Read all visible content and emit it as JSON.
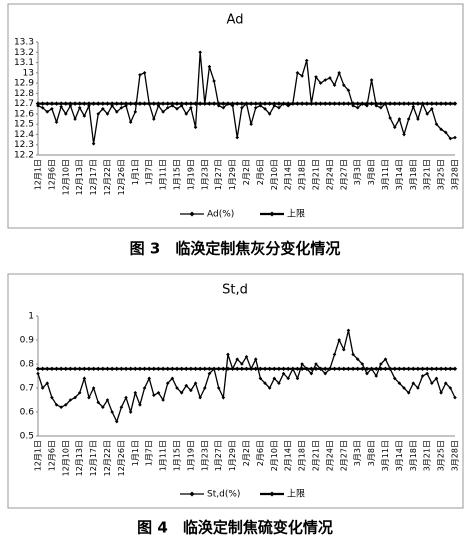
{
  "chart_data": [
    {
      "type": "line",
      "title": "Ad",
      "caption": "图 3　临涣定制焦灰分变化情况",
      "categories": [
        "12月1日",
        null,
        null,
        "12月6日",
        null,
        null,
        "12月10日",
        null,
        null,
        "12月13日",
        null,
        null,
        "12月17日",
        null,
        null,
        "12月22日",
        null,
        null,
        "12月26日",
        null,
        null,
        "1月1日",
        null,
        null,
        "1月7日",
        null,
        null,
        "1月11日",
        null,
        null,
        "1月15日",
        null,
        null,
        "1月19日",
        null,
        null,
        "1月23日",
        null,
        null,
        "1月27日",
        null,
        null,
        "1月29日",
        null,
        null,
        "2月2日",
        null,
        null,
        "2月6日",
        null,
        null,
        "2月10日",
        null,
        null,
        "2月14日",
        null,
        null,
        "2月18日",
        null,
        null,
        "2月21日",
        null,
        null,
        "2月24日",
        null,
        null,
        "2月27日",
        null,
        null,
        "3月3日",
        null,
        null,
        "3月8日",
        null,
        null,
        "3月11日",
        null,
        null,
        "3月14日",
        null,
        null,
        "3月18日",
        null,
        null,
        "3月21日",
        null,
        null,
        "3月25日",
        null,
        null,
        "3月28日"
      ],
      "series": [
        {
          "name": "Ad(%)",
          "color": "#000000",
          "values": [
            12.68,
            12.66,
            12.62,
            12.65,
            12.52,
            12.67,
            12.6,
            12.68,
            12.55,
            12.66,
            12.58,
            12.68,
            12.31,
            12.6,
            12.65,
            12.6,
            12.68,
            12.62,
            12.66,
            12.68,
            12.52,
            12.62,
            12.98,
            13.0,
            12.7,
            12.55,
            12.68,
            12.62,
            12.66,
            12.68,
            12.65,
            12.68,
            12.6,
            12.66,
            12.47,
            13.2,
            12.7,
            13.06,
            12.92,
            12.68,
            12.66,
            12.7,
            12.68,
            12.37,
            12.66,
            12.7,
            12.5,
            12.66,
            12.68,
            12.65,
            12.6,
            12.68,
            12.66,
            12.7,
            12.68,
            12.7,
            13.0,
            12.97,
            13.12,
            12.7,
            12.96,
            12.9,
            12.93,
            12.95,
            12.88,
            13.0,
            12.88,
            12.83,
            12.68,
            12.66,
            12.7,
            12.68,
            12.93,
            12.68,
            12.66,
            12.7,
            12.56,
            12.47,
            12.55,
            12.4,
            12.55,
            12.67,
            12.55,
            12.7,
            12.6,
            12.65,
            12.5,
            12.45,
            12.42,
            12.36,
            12.37
          ]
        },
        {
          "name": "上限",
          "color": "#000000",
          "values": [
            12.7,
            12.7,
            12.7,
            12.7,
            12.7,
            12.7,
            12.7,
            12.7,
            12.7,
            12.7,
            12.7,
            12.7,
            12.7,
            12.7,
            12.7,
            12.7,
            12.7,
            12.7,
            12.7,
            12.7,
            12.7,
            12.7,
            12.7,
            12.7,
            12.7,
            12.7,
            12.7,
            12.7,
            12.7,
            12.7,
            12.7,
            12.7,
            12.7,
            12.7,
            12.7,
            12.7,
            12.7,
            12.7,
            12.7,
            12.7,
            12.7,
            12.7,
            12.7,
            12.7,
            12.7,
            12.7,
            12.7,
            12.7,
            12.7,
            12.7,
            12.7,
            12.7,
            12.7,
            12.7,
            12.7,
            12.7,
            12.7,
            12.7,
            12.7,
            12.7,
            12.7,
            12.7,
            12.7,
            12.7,
            12.7,
            12.7,
            12.7,
            12.7,
            12.7,
            12.7,
            12.7,
            12.7,
            12.7,
            12.7,
            12.7,
            12.7,
            12.7,
            12.7,
            12.7,
            12.7,
            12.7,
            12.7,
            12.7,
            12.7,
            12.7,
            12.7,
            12.7,
            12.7,
            12.7,
            12.7,
            12.7
          ]
        }
      ],
      "ylim": [
        12.2,
        13.3
      ],
      "yticks": [
        12.2,
        12.3,
        12.4,
        12.5,
        12.6,
        12.7,
        12.8,
        12.9,
        13,
        13.1,
        13.2,
        13.3
      ],
      "legend": "bottom"
    },
    {
      "type": "line",
      "title": "St,d",
      "caption": "图 4　临涣定制焦硫变化情况",
      "categories": [
        "12月1日",
        null,
        null,
        "12月6日",
        null,
        null,
        "12月10日",
        null,
        null,
        "12月13日",
        null,
        null,
        "12月17日",
        null,
        null,
        "12月22日",
        null,
        null,
        "12月26日",
        null,
        null,
        "1月1日",
        null,
        null,
        "1月7日",
        null,
        null,
        "1月11日",
        null,
        null,
        "1月15日",
        null,
        null,
        "1月19日",
        null,
        null,
        "1月23日",
        null,
        null,
        "1月27日",
        null,
        null,
        "1月29日",
        null,
        null,
        "2月2日",
        null,
        null,
        "2月6日",
        null,
        null,
        "2月10日",
        null,
        null,
        "2月14日",
        null,
        null,
        "2月18日",
        null,
        null,
        "2月21日",
        null,
        null,
        "2月24日",
        null,
        null,
        "2月27日",
        null,
        null,
        "3月3日",
        null,
        null,
        "3月8日",
        null,
        null,
        "3月11日",
        null,
        null,
        "3月14日",
        null,
        null,
        "3月18日",
        null,
        null,
        "3月21日",
        null,
        null,
        "3月25日",
        null,
        null,
        "3月28日"
      ],
      "series": [
        {
          "name": "St,d(%)",
          "color": "#000000",
          "values": [
            0.76,
            0.7,
            0.72,
            0.66,
            0.63,
            0.62,
            0.63,
            0.65,
            0.66,
            0.68,
            0.74,
            0.66,
            0.7,
            0.64,
            0.62,
            0.65,
            0.6,
            0.56,
            0.62,
            0.66,
            0.6,
            0.68,
            0.63,
            0.7,
            0.74,
            0.67,
            0.68,
            0.65,
            0.72,
            0.74,
            0.7,
            0.68,
            0.71,
            0.69,
            0.72,
            0.66,
            0.7,
            0.76,
            0.78,
            0.7,
            0.66,
            0.84,
            0.78,
            0.82,
            0.8,
            0.83,
            0.78,
            0.82,
            0.74,
            0.72,
            0.7,
            0.74,
            0.72,
            0.76,
            0.74,
            0.78,
            0.74,
            0.8,
            0.78,
            0.76,
            0.8,
            0.78,
            0.76,
            0.78,
            0.84,
            0.9,
            0.86,
            0.94,
            0.84,
            0.82,
            0.8,
            0.76,
            0.78,
            0.75,
            0.8,
            0.82,
            0.78,
            0.74,
            0.72,
            0.7,
            0.68,
            0.72,
            0.7,
            0.75,
            0.76,
            0.72,
            0.74,
            0.68,
            0.72,
            0.7,
            0.66
          ]
        },
        {
          "name": "上限",
          "color": "#000000",
          "values": [
            0.78,
            0.78,
            0.78,
            0.78,
            0.78,
            0.78,
            0.78,
            0.78,
            0.78,
            0.78,
            0.78,
            0.78,
            0.78,
            0.78,
            0.78,
            0.78,
            0.78,
            0.78,
            0.78,
            0.78,
            0.78,
            0.78,
            0.78,
            0.78,
            0.78,
            0.78,
            0.78,
            0.78,
            0.78,
            0.78,
            0.78,
            0.78,
            0.78,
            0.78,
            0.78,
            0.78,
            0.78,
            0.78,
            0.78,
            0.78,
            0.78,
            0.78,
            0.78,
            0.78,
            0.78,
            0.78,
            0.78,
            0.78,
            0.78,
            0.78,
            0.78,
            0.78,
            0.78,
            0.78,
            0.78,
            0.78,
            0.78,
            0.78,
            0.78,
            0.78,
            0.78,
            0.78,
            0.78,
            0.78,
            0.78,
            0.78,
            0.78,
            0.78,
            0.78,
            0.78,
            0.78,
            0.78,
            0.78,
            0.78,
            0.78,
            0.78,
            0.78,
            0.78,
            0.78,
            0.78,
            0.78,
            0.78,
            0.78,
            0.78,
            0.78,
            0.78,
            0.78,
            0.78,
            0.78,
            0.78,
            0.78
          ]
        }
      ],
      "ylim": [
        0.5,
        1
      ],
      "yticks": [
        0.5,
        0.6,
        0.7,
        0.8,
        0.9,
        1
      ],
      "legend": "bottom"
    }
  ]
}
